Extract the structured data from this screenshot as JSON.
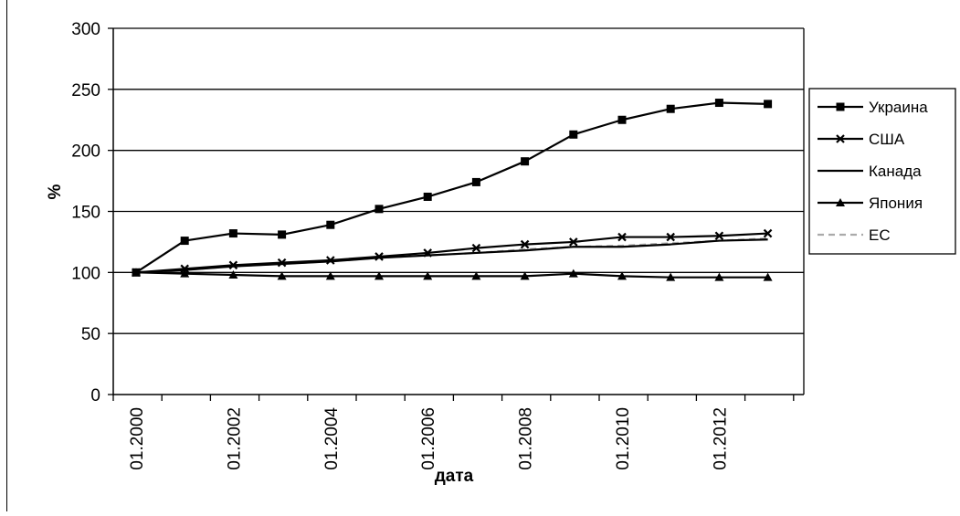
{
  "chart_data": {
    "type": "line",
    "title": "",
    "xlabel": "дата",
    "ylabel": "%",
    "ylim": [
      0,
      300
    ],
    "yticks": [
      0,
      50,
      100,
      150,
      200,
      250,
      300
    ],
    "x": [
      "01.2000",
      "01.2001",
      "01.2002",
      "01.2003",
      "01.2004",
      "01.2005",
      "01.2006",
      "01.2007",
      "01.2008",
      "01.2009",
      "01.2010",
      "01.2011",
      "01.2012",
      "01.2013"
    ],
    "xtick_labels": [
      "01.2000",
      "",
      "01.2002",
      "",
      "01.2004",
      "",
      "01.2006",
      "",
      "01.2008",
      "",
      "01.2010",
      "",
      "01.2012",
      ""
    ],
    "grid": "horizontal",
    "legend_position": "right",
    "series": [
      {
        "name": "Украина",
        "marker": "square",
        "color": "#000000",
        "dash": "solid",
        "values": [
          100,
          126,
          132,
          131,
          139,
          152,
          162,
          174,
          191,
          213,
          225,
          234,
          239,
          238
        ]
      },
      {
        "name": "США",
        "marker": "x",
        "color": "#000000",
        "dash": "solid",
        "values": [
          100,
          103,
          106,
          108,
          110,
          113,
          116,
          120,
          123,
          125,
          129,
          129,
          130,
          132
        ]
      },
      {
        "name": "Канада",
        "marker": "none",
        "color": "#000000",
        "dash": "solid",
        "values": [
          100,
          102,
          105,
          107,
          109,
          112,
          114,
          116,
          118,
          121,
          121,
          123,
          126,
          127
        ]
      },
      {
        "name": "Япония",
        "marker": "triangle",
        "color": "#000000",
        "dash": "solid",
        "values": [
          100,
          99,
          98,
          97,
          97,
          97,
          97,
          97,
          97,
          99,
          97,
          96,
          96,
          96
        ]
      },
      {
        "name": "ЕС",
        "marker": "none",
        "color": "#aaaaaa",
        "dash": "dashed",
        "values": [
          100,
          102,
          105,
          107,
          109,
          112,
          114,
          116,
          119,
          121,
          122,
          124,
          126,
          128
        ]
      }
    ]
  }
}
